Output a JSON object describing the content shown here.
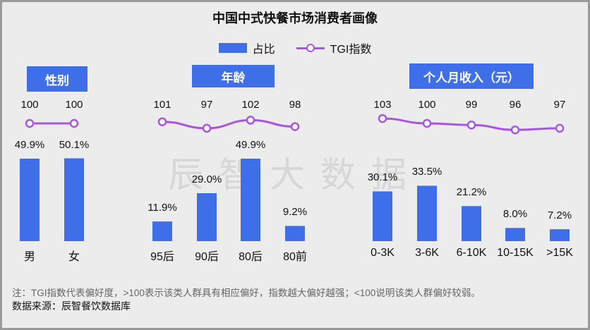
{
  "title": "中国中式快餐市场消费者画像",
  "legend": {
    "bar": "占比",
    "line": "TGI指数"
  },
  "colors": {
    "bar": "#3f6fe8",
    "line": "#a855e0",
    "header": "#3f6fe8"
  },
  "watermark": "辰智大数据",
  "note": "注：TGI指数代表偏好度，>100表示该类人群具有相应偏好，指数越大偏好越强；<100说明该类人群偏好较弱。",
  "source": "数据来源：辰智餐饮数据库",
  "chart_data": [
    {
      "type": "bar+line",
      "title": "性别",
      "categories": [
        "男",
        "女"
      ],
      "share_labels": [
        "49.9%",
        "50.1%"
      ],
      "share": [
        49.9,
        50.1
      ],
      "tgi": [
        100,
        100
      ]
    },
    {
      "type": "bar+line",
      "title": "年龄",
      "categories": [
        "95后",
        "90后",
        "80后",
        "80前"
      ],
      "share_labels": [
        "11.9%",
        "29.0%",
        "49.9%",
        "9.2%"
      ],
      "share": [
        11.9,
        29.0,
        49.9,
        9.2
      ],
      "tgi": [
        101,
        97,
        102,
        98
      ]
    },
    {
      "type": "bar+line",
      "title": "个人月收入（元）",
      "categories": [
        "0-3K",
        "3-6K",
        "6-10K",
        "10-15K",
        ">15K"
      ],
      "share_labels": [
        "30.1%",
        "33.5%",
        "21.2%",
        "8.0%",
        "7.2%"
      ],
      "share": [
        30.1,
        33.5,
        21.2,
        8.0,
        7.2
      ],
      "tgi": [
        103,
        100,
        99,
        96,
        97
      ]
    }
  ]
}
